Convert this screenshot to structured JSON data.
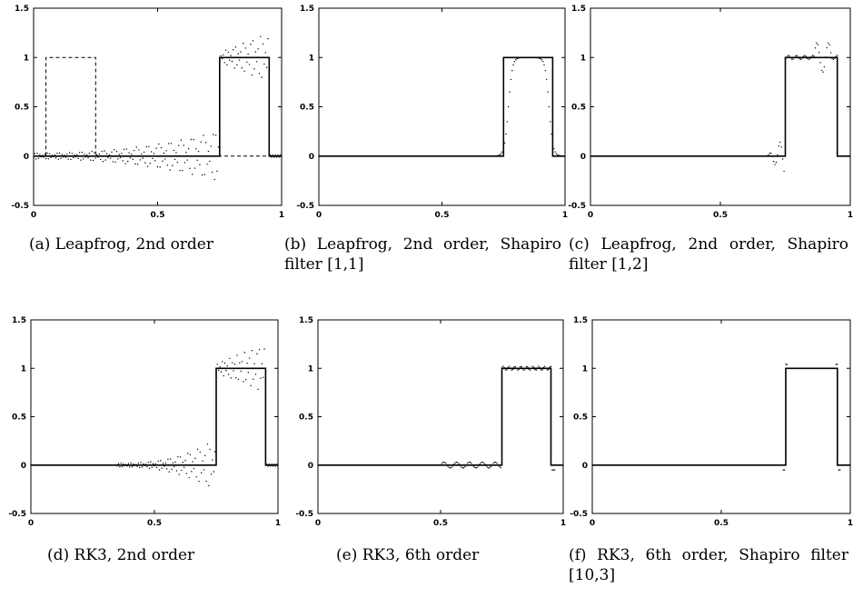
{
  "panels": [
    {
      "caption": "(a) Leapfrog, 2nd order"
    },
    {
      "caption": "(b) Leapfrog, 2nd order, Shapiro filter [1,1]"
    },
    {
      "caption": "(c) Leapfrog, 2nd order, Shapiro filter [1,2]"
    },
    {
      "caption": "(d) RK3, 2nd order"
    },
    {
      "caption": "(e) RK3, 6th order"
    },
    {
      "caption": "(f) RK3, 6th order, Shapiro filter [10,3]"
    }
  ],
  "chart_data": [
    {
      "type": "line",
      "xlim": [
        0,
        1
      ],
      "ylim": [
        -0.5,
        1.5
      ],
      "xticks": [
        "0",
        "0.5",
        "1"
      ],
      "yticks": [
        "1.5",
        "1",
        "0.5",
        "0",
        "-0.5"
      ],
      "grid": false,
      "series": [
        {
          "style": "solid",
          "x": [
            0,
            0.75,
            0.75,
            0.95,
            0.95,
            1
          ],
          "values": [
            0,
            0,
            1,
            1,
            0,
            0
          ]
        },
        {
          "style": "dashed",
          "x": [
            0,
            0.05,
            0.05,
            0.25,
            0.25,
            1
          ],
          "values": [
            0,
            0,
            1,
            1,
            0,
            0
          ]
        },
        {
          "style": "dotted",
          "scheme": "leapfrog-oscillation"
        }
      ]
    },
    {
      "type": "line",
      "xlim": [
        0,
        1
      ],
      "ylim": [
        -0.5,
        1.5
      ],
      "xticks": [
        "0",
        "0.5",
        "1"
      ],
      "yticks": [
        "1.5",
        "1",
        "0.5",
        "0",
        "-0.5"
      ],
      "grid": false,
      "series": [
        {
          "style": "solid",
          "x": [
            0,
            0.75,
            0.75,
            0.95,
            0.95,
            1
          ],
          "values": [
            0,
            0,
            1,
            1,
            0,
            0
          ]
        },
        {
          "style": "dotted",
          "scheme": "smooth-diffused"
        }
      ]
    },
    {
      "type": "line",
      "xlim": [
        0,
        1
      ],
      "ylim": [
        -0.5,
        1.5
      ],
      "xticks": [
        "0",
        "0.5",
        "1"
      ],
      "yticks": [
        "1.5",
        "1",
        "0.5",
        "0",
        "-0.5"
      ],
      "grid": false,
      "series": [
        {
          "style": "solid",
          "x": [
            0,
            0.75,
            0.75,
            0.95,
            0.95,
            1
          ],
          "values": [
            0,
            0,
            1,
            1,
            0,
            0
          ]
        },
        {
          "style": "dotted",
          "scheme": "local-ringing"
        }
      ]
    },
    {
      "type": "line",
      "xlim": [
        0,
        1
      ],
      "ylim": [
        -0.5,
        1.5
      ],
      "xticks": [
        "0",
        "0.5",
        "1"
      ],
      "yticks": [
        "1.5",
        "1",
        "0.5",
        "0",
        "-0.5"
      ],
      "grid": false,
      "series": [
        {
          "style": "solid",
          "x": [
            0,
            0.75,
            0.75,
            0.95,
            0.95,
            1
          ],
          "values": [
            0,
            0,
            1,
            1,
            0,
            0
          ]
        },
        {
          "style": "dotted",
          "scheme": "rk3-2nd-oscillation"
        }
      ]
    },
    {
      "type": "line",
      "xlim": [
        0,
        1
      ],
      "ylim": [
        -0.5,
        1.5
      ],
      "xticks": [
        "0",
        "0.5",
        "1"
      ],
      "yticks": [
        "1.5",
        "1",
        "0.5",
        "0",
        "-0.5"
      ],
      "grid": false,
      "series": [
        {
          "style": "solid",
          "x": [
            0,
            0.75,
            0.75,
            0.95,
            0.95,
            1
          ],
          "values": [
            0,
            0,
            1,
            1,
            0,
            0
          ]
        },
        {
          "style": "dotted",
          "scheme": "small-wiggles"
        }
      ]
    },
    {
      "type": "line",
      "xlim": [
        0,
        1
      ],
      "ylim": [
        -0.5,
        1.5
      ],
      "xticks": [
        "0",
        "0.5",
        "1"
      ],
      "yticks": [
        "1.5",
        "1",
        "0.5",
        "0",
        "-0.5"
      ],
      "grid": false,
      "series": [
        {
          "style": "solid",
          "x": [
            0,
            0.75,
            0.75,
            0.95,
            0.95,
            1
          ],
          "values": [
            0,
            0,
            1,
            1,
            0,
            0
          ]
        },
        {
          "style": "dotted",
          "scheme": "clean-overshoot"
        }
      ]
    }
  ]
}
